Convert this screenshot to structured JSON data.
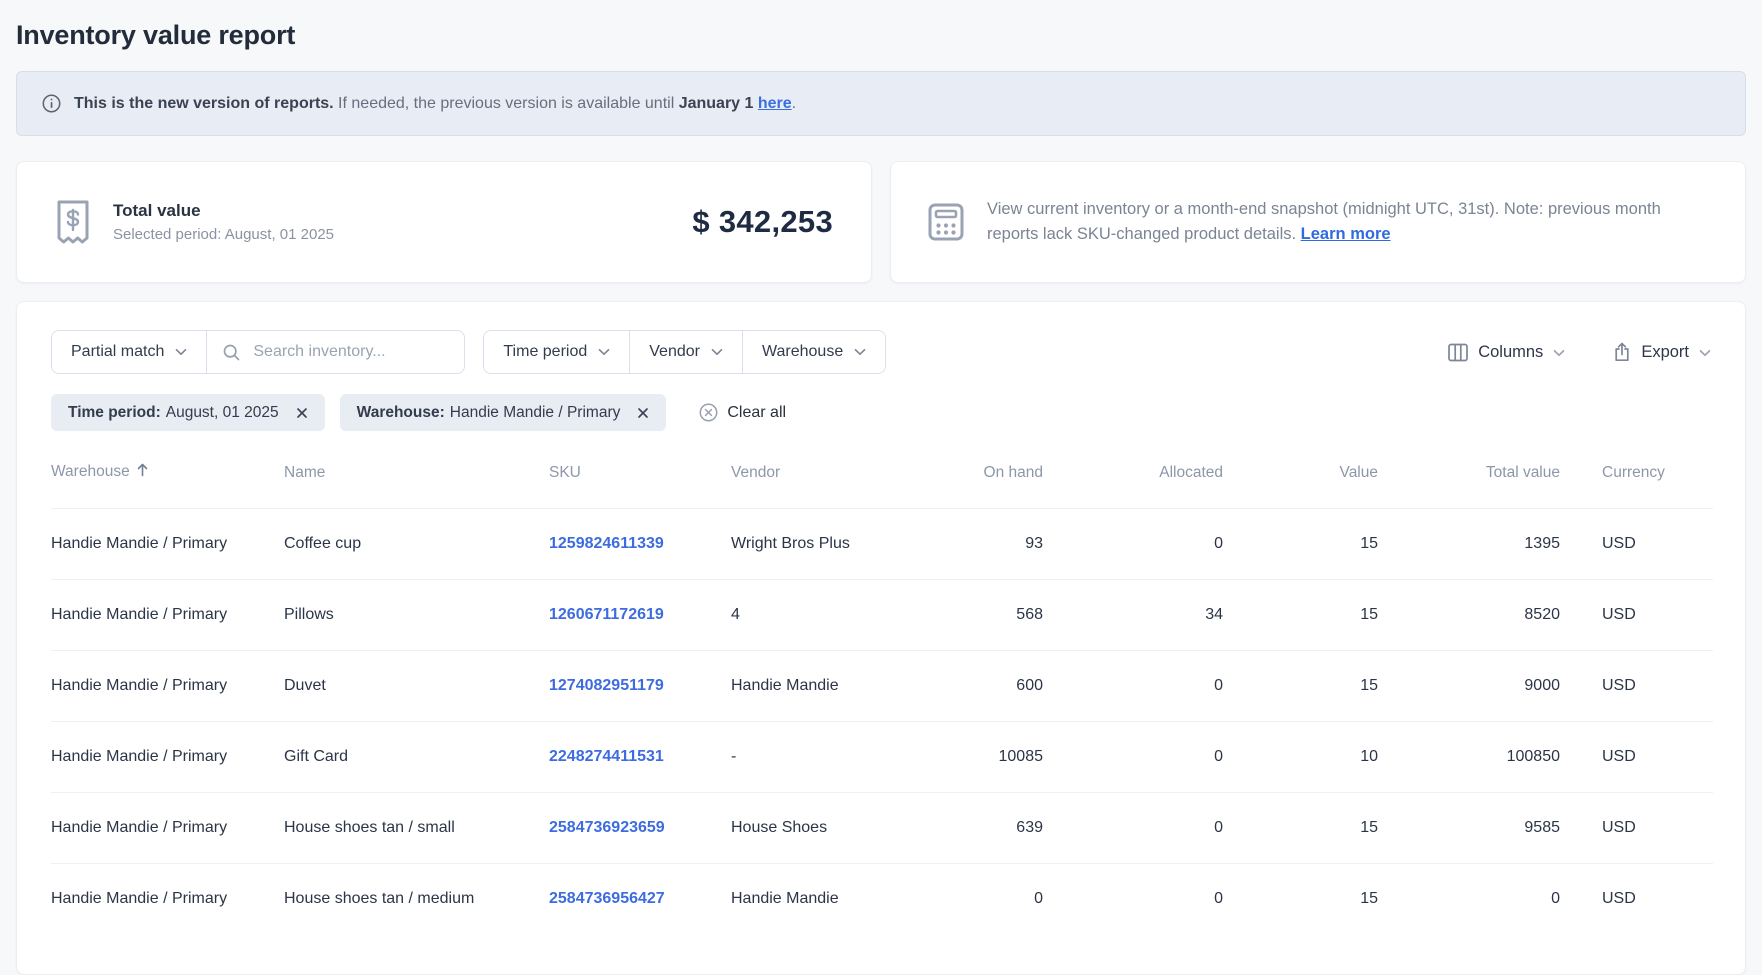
{
  "page": {
    "title": "Inventory value report"
  },
  "banner": {
    "intro_bold": "This is the new version of reports.",
    "body": " If needed, the previous version is available until ",
    "deadline": "January 1",
    "link_label": "here",
    "suffix": "."
  },
  "summary": {
    "total_label": "Total value",
    "period_label": "Selected period: August, 01 2025",
    "amount": "$ 342,253"
  },
  "snapshot_note": {
    "text": "View current inventory or a month-end snapshot (midnight UTC, 31st). Note: previous month reports lack SKU-changed product details. ",
    "link_label": "Learn more"
  },
  "toolbar": {
    "match_mode": "Partial match",
    "search_placeholder": "Search inventory...",
    "filter_buttons": [
      "Time period",
      "Vendor",
      "Warehouse"
    ],
    "columns_label": "Columns",
    "export_label": "Export"
  },
  "active_filters": {
    "chips": [
      {
        "label": "Time period:",
        "value": "August, 01 2025"
      },
      {
        "label": "Warehouse:",
        "value": "Handie Mandie / Primary"
      }
    ],
    "clear_all_label": "Clear all"
  },
  "table": {
    "headers": [
      "Warehouse",
      "Name",
      "SKU",
      "Vendor",
      "On hand",
      "Allocated",
      "Value",
      "Total value",
      "Currency"
    ],
    "sorted_by": "Warehouse",
    "sort_direction": "ascending",
    "rows": [
      {
        "warehouse": "Handie Mandie / Primary",
        "name": "Coffee cup",
        "sku": "1259824611339",
        "vendor": "Wright Bros Plus",
        "on_hand": "93",
        "allocated": "0",
        "value": "15",
        "total_value": "1395",
        "currency": "USD"
      },
      {
        "warehouse": "Handie Mandie / Primary",
        "name": "Pillows",
        "sku": "1260671172619",
        "vendor": "4",
        "on_hand": "568",
        "allocated": "34",
        "value": "15",
        "total_value": "8520",
        "currency": "USD"
      },
      {
        "warehouse": "Handie Mandie / Primary",
        "name": "Duvet",
        "sku": "1274082951179",
        "vendor": "Handie Mandie",
        "on_hand": "600",
        "allocated": "0",
        "value": "15",
        "total_value": "9000",
        "currency": "USD"
      },
      {
        "warehouse": "Handie Mandie / Primary",
        "name": "Gift Card",
        "sku": "2248274411531",
        "vendor": "-",
        "on_hand": "10085",
        "allocated": "0",
        "value": "10",
        "total_value": "100850",
        "currency": "USD"
      },
      {
        "warehouse": "Handie Mandie / Primary",
        "name": "House shoes tan / small",
        "sku": "2584736923659",
        "vendor": "House Shoes",
        "on_hand": "639",
        "allocated": "0",
        "value": "15",
        "total_value": "9585",
        "currency": "USD"
      },
      {
        "warehouse": "Handie Mandie / Primary",
        "name": "House shoes tan / medium",
        "sku": "2584736956427",
        "vendor": "Handie Mandie",
        "on_hand": "0",
        "allocated": "0",
        "value": "15",
        "total_value": "0",
        "currency": "USD"
      }
    ]
  },
  "colors": {
    "link_blue": "#3d6ce0",
    "banner_bg": "#e8ecf4",
    "chip_bg": "#e8ecf3",
    "dark_text": "#232c3b",
    "muted_text": "#8d97a9"
  }
}
